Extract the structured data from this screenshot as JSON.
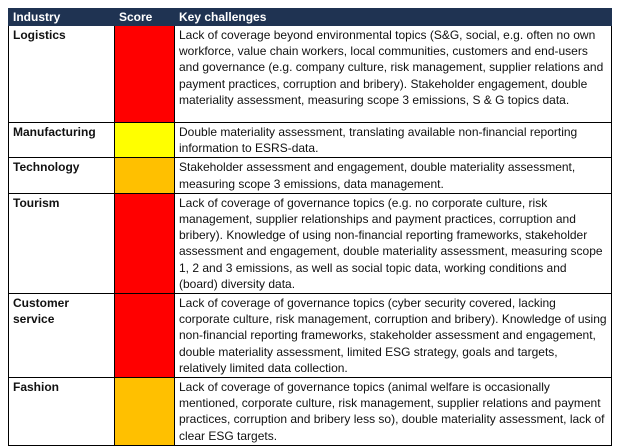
{
  "headers": {
    "industry": "Industry",
    "score": "Score",
    "challenges": "Key challenges"
  },
  "colors": {
    "header_bg": "#1f3352",
    "red": "#ff0000",
    "yellow": "#ffff00",
    "orange": "#ffc000"
  },
  "rows": [
    {
      "industry": "Logistics",
      "score_color": "#ff0000",
      "challenges": "Lack of coverage beyond environmental topics (S&G, social, e.g. often no own workforce, value chain workers, local communities, customers and end-users and governance (e.g. company culture, risk management, supplier relations and payment practices, corruption and bribery). Stakeholder engagement, double materiality assessment, measuring scope 3 emissions, S & G topics data."
    },
    {
      "industry": "Manufacturing",
      "score_color": "#ffff00",
      "challenges": "Double materiality assessment, translating available non-financial reporting information to ESRS-data."
    },
    {
      "industry": "Technology",
      "score_color": "#ffc000",
      "challenges": "Stakeholder assessment and engagement, double materiality assessment, measuring scope 3 emissions, data management."
    },
    {
      "industry": "Tourism",
      "score_color": "#ff0000",
      "challenges": "Lack of coverage of governance topics (e.g. no corporate culture, risk management, supplier relationships and payment practices, corruption and bribery). Knowledge of using non-financial reporting frameworks, stakeholder assessment and engagement, double materiality assessment, measuring scope 1, 2 and 3 emissions, as well as social topic data, working conditions and (board) diversity data."
    },
    {
      "industry": "Customer service",
      "score_color": "#ff0000",
      "challenges": "Lack of coverage of governance topics (cyber security covered, lacking corporate culture, risk management, corruption and bribery). Knowledge of using non-financial reporting frameworks, stakeholder assessment and engagement, double materiality assessment, limited ESG strategy, goals and targets, relatively limited data collection."
    },
    {
      "industry": "Fashion",
      "score_color": "#ffc000",
      "challenges": "Lack of coverage of governance topics (animal welfare is occasionally mentioned, corporate culture, risk management, supplier relations and payment practices, corruption and bribery less so), double materiality assessment, lack of clear ESG targets."
    }
  ]
}
